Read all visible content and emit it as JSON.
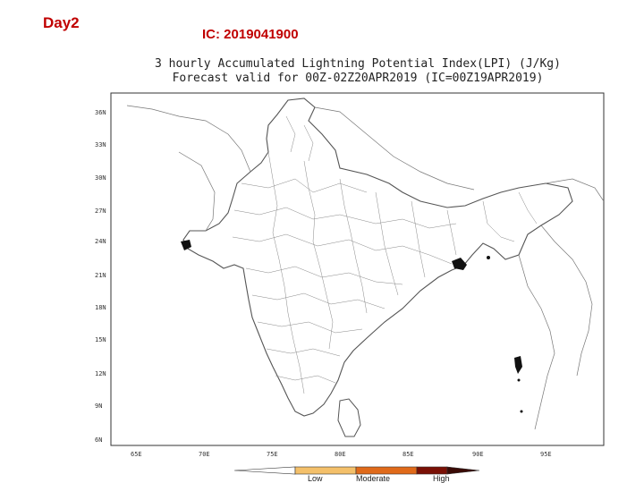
{
  "header": {
    "day": "Day2",
    "ic": "IC: 2019041900"
  },
  "map": {
    "title_line1": "3 hourly Accumulated Lightning Potential Index(LPI) (J/Kg)",
    "title_line2": "Forecast valid for 00Z-02Z20APR2019 (IC=00Z19APR2019)",
    "lat_labels": [
      "36N",
      "33N",
      "30N",
      "27N",
      "24N",
      "21N",
      "18N",
      "15N",
      "12N",
      "9N",
      "6N"
    ],
    "lon_labels": [
      "65E",
      "70E",
      "75E",
      "80E",
      "85E",
      "90E",
      "95E"
    ],
    "colors": {
      "boundary": "#555555",
      "low": "#f4c06a",
      "moderate": "#e06a1a",
      "high": "#7a1005"
    }
  },
  "legend": {
    "low": "Low",
    "moderate": "Moderate",
    "high": "High"
  }
}
